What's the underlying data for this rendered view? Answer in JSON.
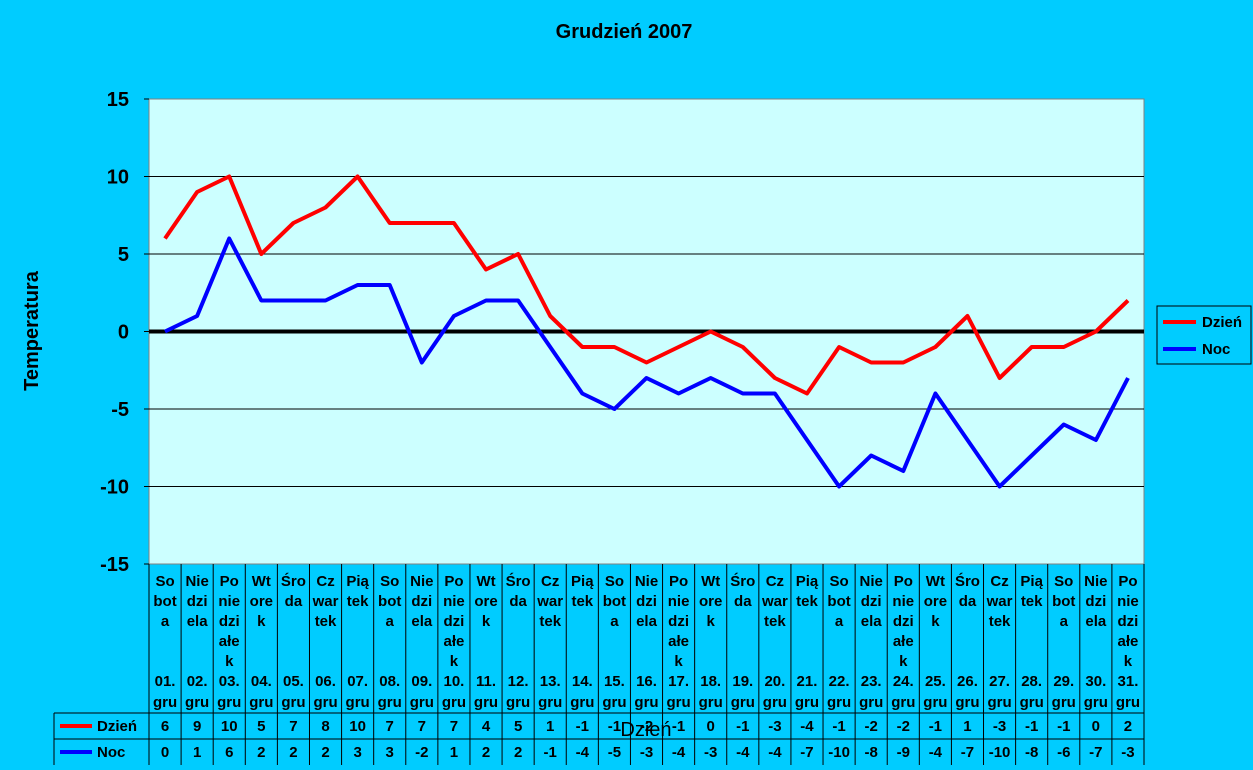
{
  "chart_data": {
    "type": "line",
    "title": "Grudzień 2007",
    "xlabel": "Dzień",
    "ylabel": "Temperatura",
    "ylim": [
      -15,
      15
    ],
    "yticks": [
      15,
      10,
      5,
      0,
      -5,
      -10,
      -15
    ],
    "grid": true,
    "legend_position": "right",
    "categories": [
      {
        "day": [
          "So",
          "bot",
          "a"
        ],
        "date": [
          "01.",
          "gru"
        ]
      },
      {
        "day": [
          "Nie",
          "dzi",
          "ela"
        ],
        "date": [
          "02.",
          "gru"
        ]
      },
      {
        "day": [
          "Po",
          "nie",
          "dzi",
          "ałe",
          "k"
        ],
        "date": [
          "03.",
          "gru"
        ]
      },
      {
        "day": [
          "Wt",
          "ore",
          "k"
        ],
        "date": [
          "04.",
          "gru"
        ]
      },
      {
        "day": [
          "Śro",
          "da"
        ],
        "date": [
          "05.",
          "gru"
        ]
      },
      {
        "day": [
          "Cz",
          "war",
          "tek"
        ],
        "date": [
          "06.",
          "gru"
        ]
      },
      {
        "day": [
          "Pią",
          "tek"
        ],
        "date": [
          "07.",
          "gru"
        ]
      },
      {
        "day": [
          "So",
          "bot",
          "a"
        ],
        "date": [
          "08.",
          "gru"
        ]
      },
      {
        "day": [
          "Nie",
          "dzi",
          "ela"
        ],
        "date": [
          "09.",
          "gru"
        ]
      },
      {
        "day": [
          "Po",
          "nie",
          "dzi",
          "ałe",
          "k"
        ],
        "date": [
          "10.",
          "gru"
        ]
      },
      {
        "day": [
          "Wt",
          "ore",
          "k"
        ],
        "date": [
          "11.",
          "gru"
        ]
      },
      {
        "day": [
          "Śro",
          "da"
        ],
        "date": [
          "12.",
          "gru"
        ]
      },
      {
        "day": [
          "Cz",
          "war",
          "tek"
        ],
        "date": [
          "13.",
          "gru"
        ]
      },
      {
        "day": [
          "Pią",
          "tek"
        ],
        "date": [
          "14.",
          "gru"
        ]
      },
      {
        "day": [
          "So",
          "bot",
          "a"
        ],
        "date": [
          "15.",
          "gru"
        ]
      },
      {
        "day": [
          "Nie",
          "dzi",
          "ela"
        ],
        "date": [
          "16.",
          "gru"
        ]
      },
      {
        "day": [
          "Po",
          "nie",
          "dzi",
          "ałe",
          "k"
        ],
        "date": [
          "17.",
          "gru"
        ]
      },
      {
        "day": [
          "Wt",
          "ore",
          "k"
        ],
        "date": [
          "18.",
          "gru"
        ]
      },
      {
        "day": [
          "Śro",
          "da"
        ],
        "date": [
          "19.",
          "gru"
        ]
      },
      {
        "day": [
          "Cz",
          "war",
          "tek"
        ],
        "date": [
          "20.",
          "gru"
        ]
      },
      {
        "day": [
          "Pią",
          "tek"
        ],
        "date": [
          "21.",
          "gru"
        ]
      },
      {
        "day": [
          "So",
          "bot",
          "a"
        ],
        "date": [
          "22.",
          "gru"
        ]
      },
      {
        "day": [
          "Nie",
          "dzi",
          "ela"
        ],
        "date": [
          "23.",
          "gru"
        ]
      },
      {
        "day": [
          "Po",
          "nie",
          "dzi",
          "ałe",
          "k"
        ],
        "date": [
          "24.",
          "gru"
        ]
      },
      {
        "day": [
          "Wt",
          "ore",
          "k"
        ],
        "date": [
          "25.",
          "gru"
        ]
      },
      {
        "day": [
          "Śro",
          "da"
        ],
        "date": [
          "26.",
          "gru"
        ]
      },
      {
        "day": [
          "Cz",
          "war",
          "tek"
        ],
        "date": [
          "27.",
          "gru"
        ]
      },
      {
        "day": [
          "Pią",
          "tek"
        ],
        "date": [
          "28.",
          "gru"
        ]
      },
      {
        "day": [
          "So",
          "bot",
          "a"
        ],
        "date": [
          "29.",
          "gru"
        ]
      },
      {
        "day": [
          "Nie",
          "dzi",
          "ela"
        ],
        "date": [
          "30.",
          "gru"
        ]
      },
      {
        "day": [
          "Po",
          "nie",
          "dzi",
          "ałe",
          "k"
        ],
        "date": [
          "31.",
          "gru"
        ]
      }
    ],
    "series": [
      {
        "name": "Dzień",
        "color": "#FF0000",
        "values": [
          6,
          9,
          10,
          5,
          7,
          8,
          10,
          7,
          7,
          7,
          4,
          5,
          1,
          -1,
          -1,
          -2,
          -1,
          0,
          -1,
          -3,
          -4,
          -1,
          -2,
          -2,
          -1,
          1,
          -3,
          -1,
          -1,
          0,
          2
        ]
      },
      {
        "name": "Noc",
        "color": "#0000FF",
        "values": [
          0,
          1,
          6,
          2,
          2,
          2,
          3,
          3,
          -2,
          1,
          2,
          2,
          -1,
          -4,
          -5,
          -3,
          -4,
          -3,
          -4,
          -4,
          -7,
          -10,
          -8,
          -9,
          -4,
          -7,
          -10,
          -8,
          -6,
          -7,
          -3
        ]
      }
    ],
    "colors": {
      "background": "#00CCFF",
      "plot_area": "#CCFFFF",
      "zero_line": "#000000",
      "gridline": "#000000"
    }
  }
}
